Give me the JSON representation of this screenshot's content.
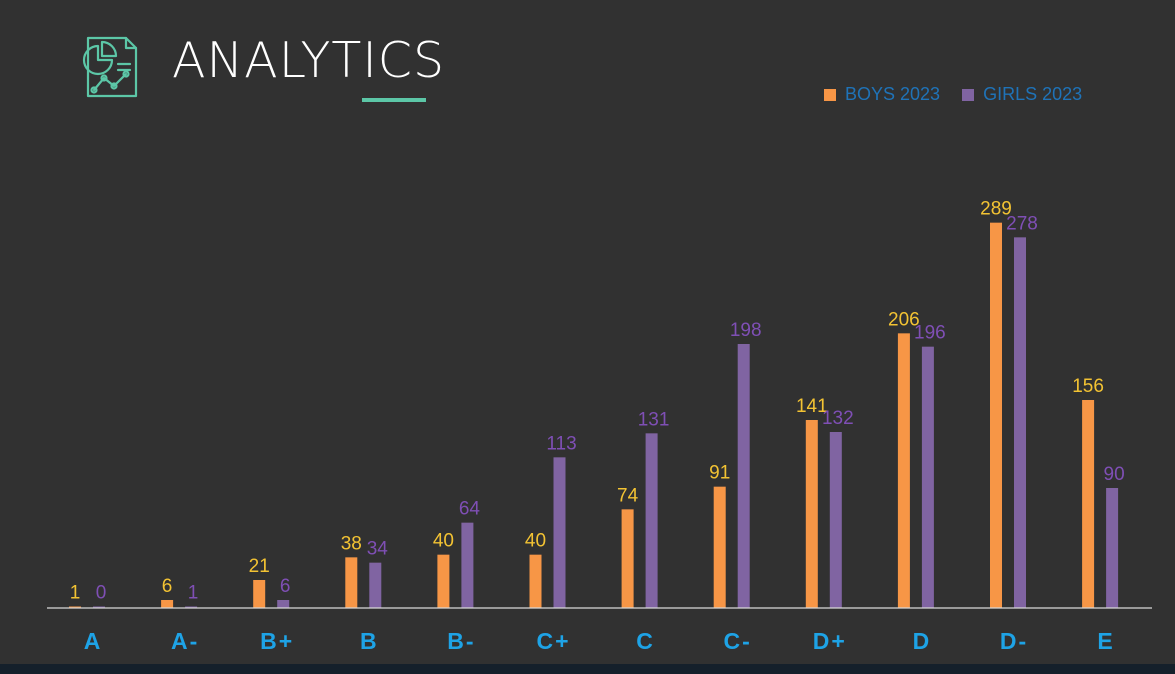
{
  "header": {
    "title": "ANALYTICS",
    "icon": "report-analytics-icon",
    "accent_color": "#5cc7a7"
  },
  "legend": {
    "text_color": "#1f73b8",
    "items": [
      {
        "label": "BOYS 2023",
        "color": "#f79646"
      },
      {
        "label": "GIRLS 2023",
        "color": "#8064a2"
      }
    ]
  },
  "colors": {
    "background": "#313131",
    "boys_label": "#f3c333",
    "girls_label": "#7f4fb5",
    "category_label": "#1ea3e6",
    "axis": "#d9d9d9"
  },
  "chart_data": {
    "type": "bar",
    "title": "",
    "xlabel": "",
    "ylabel": "",
    "categories": [
      "A",
      "A-",
      "B+",
      "B",
      "B-",
      "C+",
      "C",
      "C-",
      "D+",
      "D",
      "D-",
      "E"
    ],
    "series": [
      {
        "name": "BOYS 2023",
        "values": [
          1,
          6,
          21,
          38,
          40,
          40,
          74,
          91,
          141,
          206,
          289,
          156
        ]
      },
      {
        "name": "GIRLS 2023",
        "values": [
          0,
          1,
          6,
          34,
          64,
          113,
          131,
          198,
          132,
          196,
          278,
          90
        ]
      }
    ],
    "ylim": [
      0,
      300
    ],
    "grid": false,
    "legend_position": "top-right"
  }
}
